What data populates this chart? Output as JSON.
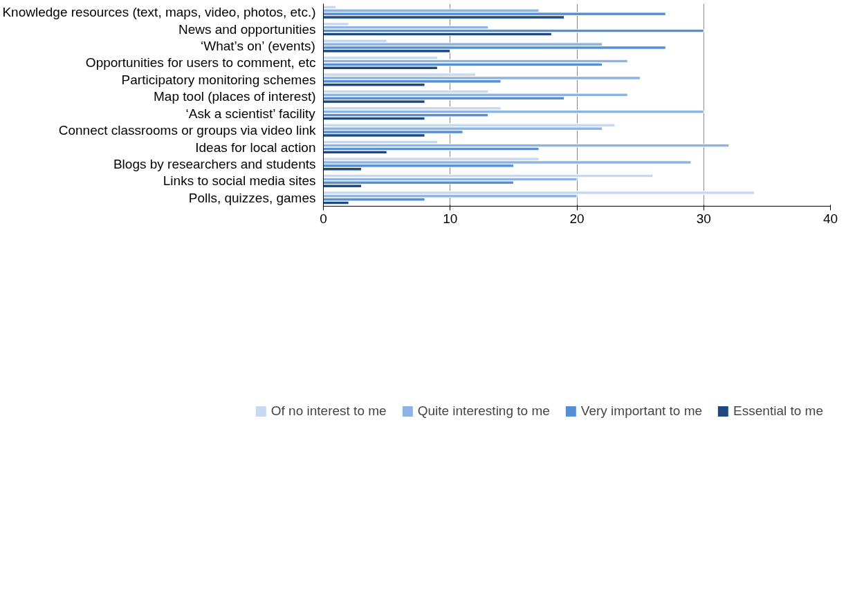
{
  "chart_data": {
    "type": "bar",
    "orientation": "horizontal",
    "categories": [
      "Knowledge resources (text, maps, video, photos, etc.)",
      "News and opportunities",
      "‘What’s on’ (events)",
      "Opportunities for users to comment, etc",
      "Participatory monitoring schemes",
      "Map tool (places of interest)",
      "‘Ask a scientist’ facility",
      "Connect classrooms or groups via video link",
      "Ideas for local action",
      "Blogs by researchers and students",
      "Links to social media sites",
      "Polls, quizzes, games"
    ],
    "series": [
      {
        "name": "Of no interest to me",
        "color": "#c6d9f1",
        "values": [
          1,
          2,
          5,
          9,
          12,
          13,
          14,
          23,
          9,
          17,
          26,
          34
        ]
      },
      {
        "name": "Quite interesting to me",
        "color": "#8db3e2",
        "values": [
          17,
          13,
          22,
          24,
          25,
          24,
          30,
          22,
          32,
          29,
          20,
          20
        ]
      },
      {
        "name": "Very important to me",
        "color": "#558ed5",
        "values": [
          27,
          30,
          27,
          22,
          14,
          19,
          13,
          11,
          17,
          15,
          15,
          8
        ]
      },
      {
        "name": "Essential to me",
        "color": "#1f497d",
        "values": [
          19,
          18,
          10,
          9,
          8,
          8,
          8,
          8,
          5,
          3,
          3,
          2
        ]
      }
    ],
    "xlim": [
      0,
      40
    ],
    "xticks": [
      0,
      10,
      20,
      30,
      40
    ],
    "grid": "x",
    "legend": "bottom"
  }
}
